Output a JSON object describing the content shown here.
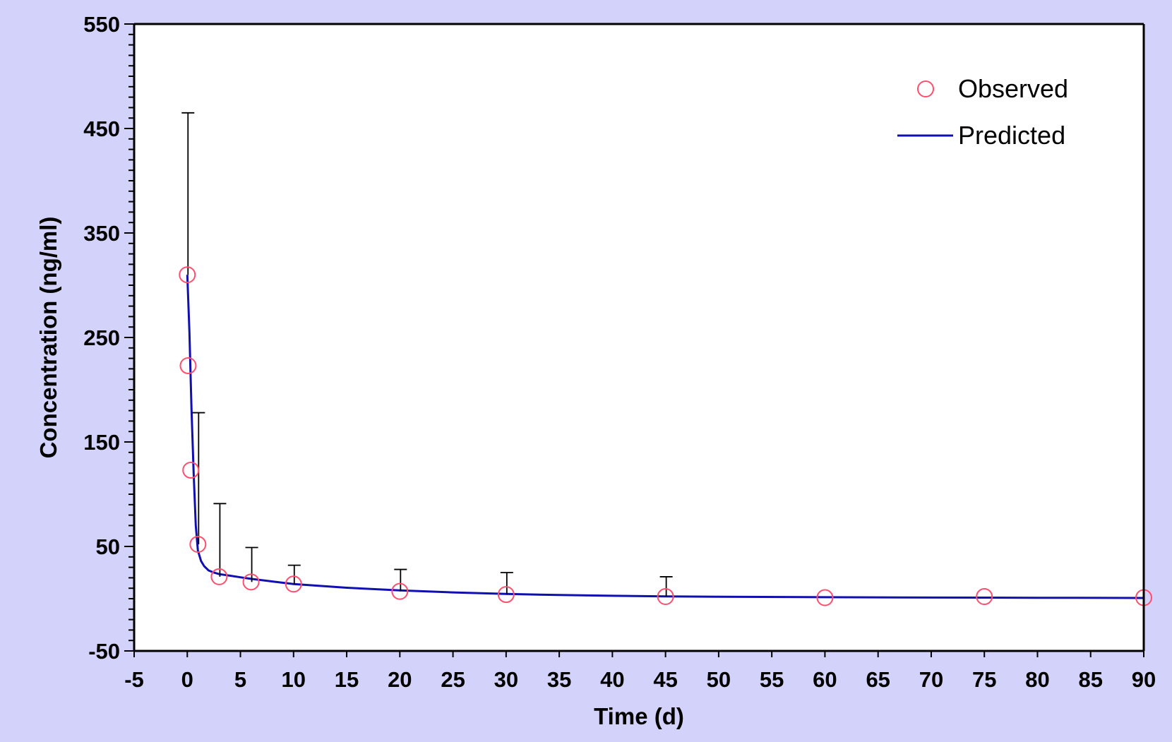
{
  "chart_data": {
    "type": "scatter",
    "title": "",
    "xlabel": "Time (d)",
    "ylabel": "Concentration (ng/ml)",
    "xlim": [
      -5,
      90
    ],
    "ylim": [
      -50,
      550
    ],
    "x_major_step": 5,
    "y_major_step": 100,
    "y_minor_step": 10,
    "grid": false,
    "legend": {
      "position": "top-right"
    },
    "colors": {
      "background": "#d2d2fa",
      "plot_area": "#ffffff",
      "observed": "#ff4f6e",
      "predicted": "#1010b0",
      "error_bars": "#000000"
    },
    "series": [
      {
        "name": "Observed",
        "kind": "markers",
        "marker": "open-circle",
        "x": [
          0,
          0.08,
          0.33,
          1,
          3,
          6,
          10,
          20,
          30,
          45,
          60,
          75,
          90
        ],
        "y": [
          310,
          223,
          123,
          52,
          21,
          16,
          14,
          7,
          4,
          2,
          1,
          2,
          1
        ],
        "error_upper": [
          465,
          null,
          null,
          178,
          91,
          49,
          32,
          28,
          25,
          21,
          null,
          null,
          null
        ]
      },
      {
        "name": "Predicted",
        "kind": "line",
        "x": [
          0,
          0.2,
          0.4,
          0.6,
          0.8,
          1,
          1.3,
          1.6,
          2,
          2.5,
          3,
          4,
          5,
          6,
          8,
          10,
          15,
          20,
          25,
          30,
          35,
          40,
          45,
          50,
          60,
          70,
          80,
          90
        ],
        "y": [
          310,
          255,
          180,
          120,
          70,
          46,
          36,
          31,
          27,
          25,
          23.5,
          22,
          20.5,
          19,
          16.5,
          14,
          10.5,
          8,
          6,
          4.5,
          3.5,
          2.8,
          2.2,
          1.9,
          1.4,
          1.1,
          0.9,
          0.7
        ]
      }
    ]
  }
}
